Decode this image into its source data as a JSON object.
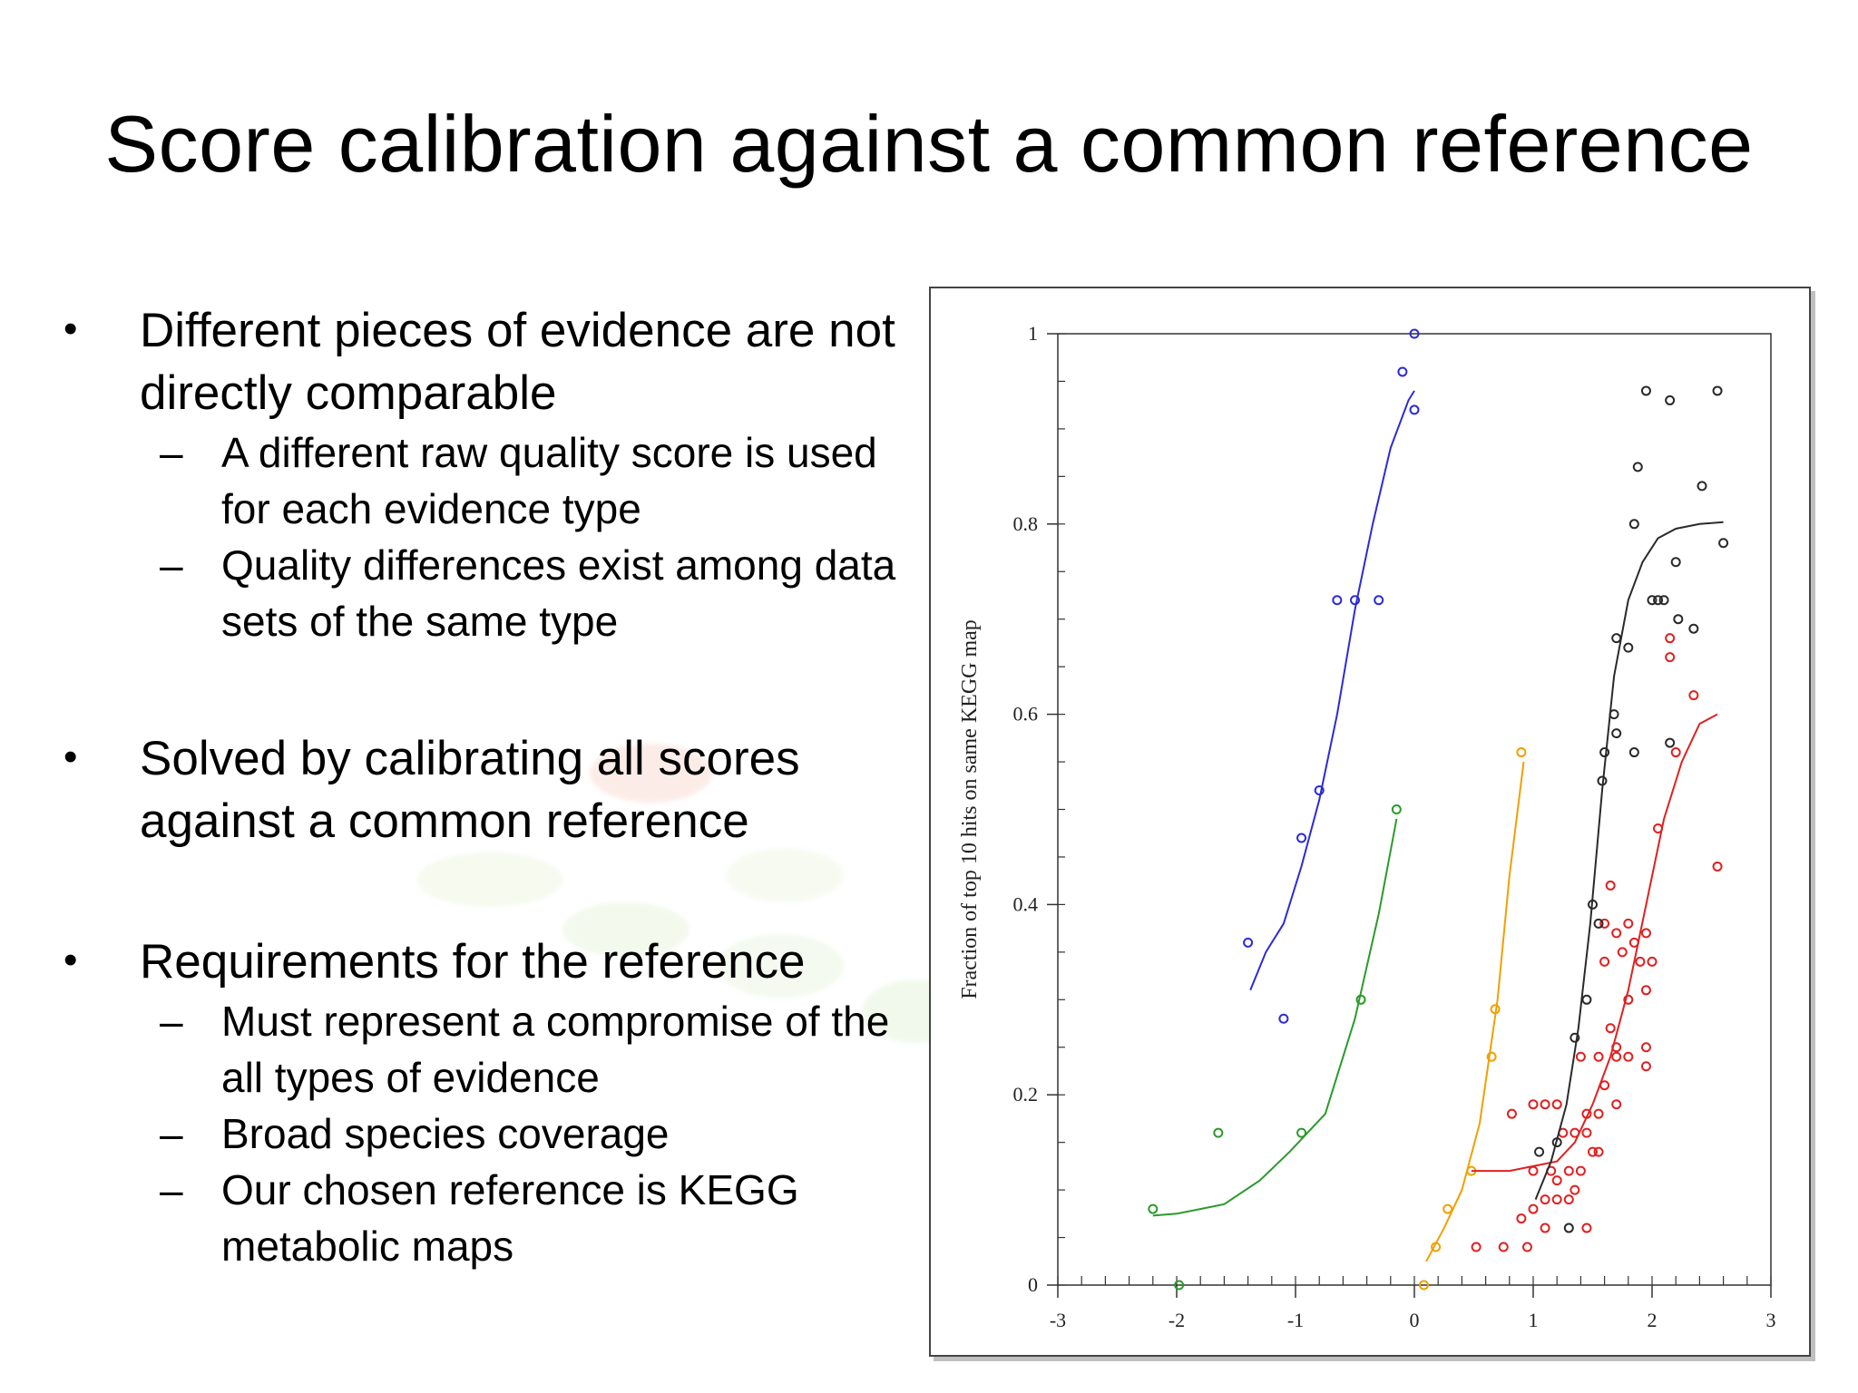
{
  "slide": {
    "title": "Score calibration against a common reference",
    "bullets": [
      {
        "text": "Different pieces of evidence are not directly comparable",
        "sub": [
          "A different raw quality score is used for each evidence type",
          "Quality differences exist among data sets of the same type"
        ]
      },
      {
        "text": "Solved by calibrating all scores against a common reference",
        "sub": []
      },
      {
        "text": "Requirements for the reference",
        "sub": [
          "Must represent a compromise of the all types of evidence",
          "Broad species coverage",
          "Our chosen reference is KEGG metabolic maps"
        ]
      }
    ],
    "bullet_mark": "•",
    "sub_mark": "–"
  },
  "chart_data": {
    "type": "scatter",
    "title": "",
    "xlabel": "",
    "ylabel": "Fraction of top 10 hits on same KEGG map",
    "xlim": [
      -3,
      3
    ],
    "ylim": [
      0,
      1
    ],
    "xticks": [
      -3,
      -2,
      -1,
      0,
      1,
      2,
      3
    ],
    "yticks": [
      0,
      0.2,
      0.4,
      0.6,
      0.8,
      1
    ],
    "ytick_labels": [
      "0",
      "0.2",
      "0.4",
      "0.6",
      "0.8",
      "1"
    ],
    "grid": false,
    "legend": "none",
    "series": [
      {
        "color": "#2b2bd6",
        "points": [
          [
            0,
            1.0
          ],
          [
            -0.1,
            0.96
          ],
          [
            0,
            0.92
          ],
          [
            -0.65,
            0.72
          ],
          [
            -0.5,
            0.72
          ],
          [
            -0.3,
            0.72
          ],
          [
            -0.8,
            0.52
          ],
          [
            -0.95,
            0.47
          ],
          [
            -1.4,
            0.36
          ],
          [
            -1.1,
            0.28
          ]
        ],
        "curve": [
          [
            -1.38,
            0.31
          ],
          [
            -1.25,
            0.35
          ],
          [
            -1.1,
            0.38
          ],
          [
            -0.95,
            0.44
          ],
          [
            -0.8,
            0.51
          ],
          [
            -0.65,
            0.6
          ],
          [
            -0.5,
            0.71
          ],
          [
            -0.35,
            0.8
          ],
          [
            -0.2,
            0.88
          ],
          [
            -0.05,
            0.93
          ],
          [
            0,
            0.94
          ]
        ]
      },
      {
        "color": "#2a9a2a",
        "points": [
          [
            -0.15,
            0.5
          ],
          [
            -0.45,
            0.3
          ],
          [
            -0.95,
            0.16
          ],
          [
            -1.65,
            0.16
          ],
          [
            -2.2,
            0.08
          ],
          [
            -1.98,
            0.0
          ]
        ],
        "curve": [
          [
            -2.2,
            0.073
          ],
          [
            -2.0,
            0.075
          ],
          [
            -1.8,
            0.08
          ],
          [
            -1.6,
            0.085
          ],
          [
            -1.3,
            0.11
          ],
          [
            -1.05,
            0.14
          ],
          [
            -0.75,
            0.18
          ],
          [
            -0.5,
            0.28
          ],
          [
            -0.3,
            0.39
          ],
          [
            -0.15,
            0.49
          ]
        ]
      },
      {
        "color": "#f0a000",
        "points": [
          [
            0.9,
            0.56
          ],
          [
            0.68,
            0.29
          ],
          [
            0.65,
            0.24
          ],
          [
            0.48,
            0.12
          ],
          [
            0.28,
            0.08
          ],
          [
            0.18,
            0.04
          ],
          [
            0.08,
            0.0
          ]
        ],
        "curve": [
          [
            0.1,
            0.025
          ],
          [
            0.25,
            0.06
          ],
          [
            0.4,
            0.1
          ],
          [
            0.55,
            0.17
          ],
          [
            0.7,
            0.3
          ],
          [
            0.8,
            0.43
          ],
          [
            0.92,
            0.55
          ]
        ]
      },
      {
        "color": "#e02020",
        "points": [
          [
            2.15,
            0.68
          ],
          [
            2.15,
            0.66
          ],
          [
            2.35,
            0.62
          ],
          [
            2.2,
            0.56
          ],
          [
            2.05,
            0.48
          ],
          [
            2.55,
            0.44
          ],
          [
            1.65,
            0.42
          ],
          [
            1.6,
            0.38
          ],
          [
            1.7,
            0.37
          ],
          [
            1.8,
            0.38
          ],
          [
            1.85,
            0.36
          ],
          [
            1.95,
            0.37
          ],
          [
            1.75,
            0.35
          ],
          [
            1.6,
            0.34
          ],
          [
            1.9,
            0.34
          ],
          [
            2.0,
            0.34
          ],
          [
            1.95,
            0.31
          ],
          [
            1.8,
            0.3
          ],
          [
            1.65,
            0.27
          ],
          [
            1.7,
            0.25
          ],
          [
            1.95,
            0.25
          ],
          [
            1.4,
            0.24
          ],
          [
            1.55,
            0.24
          ],
          [
            1.7,
            0.24
          ],
          [
            1.8,
            0.24
          ],
          [
            1.95,
            0.23
          ],
          [
            1.6,
            0.21
          ],
          [
            1.7,
            0.19
          ],
          [
            1.45,
            0.18
          ],
          [
            1.55,
            0.18
          ],
          [
            0.82,
            0.18
          ],
          [
            1.0,
            0.19
          ],
          [
            1.1,
            0.19
          ],
          [
            1.2,
            0.19
          ],
          [
            1.25,
            0.16
          ],
          [
            1.35,
            0.16
          ],
          [
            1.45,
            0.16
          ],
          [
            1.5,
            0.14
          ],
          [
            1.55,
            0.14
          ],
          [
            1.0,
            0.12
          ],
          [
            1.15,
            0.12
          ],
          [
            1.3,
            0.12
          ],
          [
            1.4,
            0.12
          ],
          [
            1.2,
            0.11
          ],
          [
            1.35,
            0.1
          ],
          [
            1.1,
            0.09
          ],
          [
            1.2,
            0.09
          ],
          [
            1.3,
            0.09
          ],
          [
            0.9,
            0.07
          ],
          [
            1.0,
            0.08
          ],
          [
            1.1,
            0.06
          ],
          [
            1.45,
            0.06
          ],
          [
            0.52,
            0.04
          ],
          [
            0.75,
            0.04
          ],
          [
            0.95,
            0.04
          ]
        ],
        "curve": [
          [
            0.48,
            0.12
          ],
          [
            0.8,
            0.12
          ],
          [
            1.0,
            0.125
          ],
          [
            1.2,
            0.13
          ],
          [
            1.35,
            0.15
          ],
          [
            1.5,
            0.19
          ],
          [
            1.65,
            0.24
          ],
          [
            1.8,
            0.31
          ],
          [
            1.95,
            0.4
          ],
          [
            2.1,
            0.49
          ],
          [
            2.25,
            0.55
          ],
          [
            2.4,
            0.59
          ],
          [
            2.55,
            0.6
          ]
        ]
      },
      {
        "color": "#2a2a2a",
        "points": [
          [
            1.95,
            0.94
          ],
          [
            2.15,
            0.93
          ],
          [
            2.55,
            0.94
          ],
          [
            1.88,
            0.86
          ],
          [
            2.42,
            0.84
          ],
          [
            1.85,
            0.8
          ],
          [
            2.6,
            0.78
          ],
          [
            2.2,
            0.76
          ],
          [
            2.0,
            0.72
          ],
          [
            2.1,
            0.72
          ],
          [
            2.05,
            0.72
          ],
          [
            2.22,
            0.7
          ],
          [
            2.35,
            0.69
          ],
          [
            1.7,
            0.68
          ],
          [
            1.8,
            0.67
          ],
          [
            1.68,
            0.6
          ],
          [
            1.7,
            0.58
          ],
          [
            1.6,
            0.56
          ],
          [
            1.85,
            0.56
          ],
          [
            2.15,
            0.57
          ],
          [
            1.58,
            0.53
          ],
          [
            1.5,
            0.4
          ],
          [
            1.55,
            0.38
          ],
          [
            1.45,
            0.3
          ],
          [
            1.35,
            0.26
          ],
          [
            1.2,
            0.15
          ],
          [
            1.05,
            0.14
          ],
          [
            1.3,
            0.06
          ]
        ]
      },
      {
        "color": "#2a2a2a",
        "points": [],
        "curve": [
          [
            1.02,
            0.09
          ],
          [
            1.15,
            0.13
          ],
          [
            1.28,
            0.19
          ],
          [
            1.38,
            0.27
          ],
          [
            1.48,
            0.38
          ],
          [
            1.58,
            0.52
          ],
          [
            1.68,
            0.64
          ],
          [
            1.8,
            0.72
          ],
          [
            1.92,
            0.76
          ],
          [
            2.05,
            0.785
          ],
          [
            2.2,
            0.795
          ],
          [
            2.4,
            0.8
          ],
          [
            2.6,
            0.802
          ]
        ]
      }
    ]
  }
}
